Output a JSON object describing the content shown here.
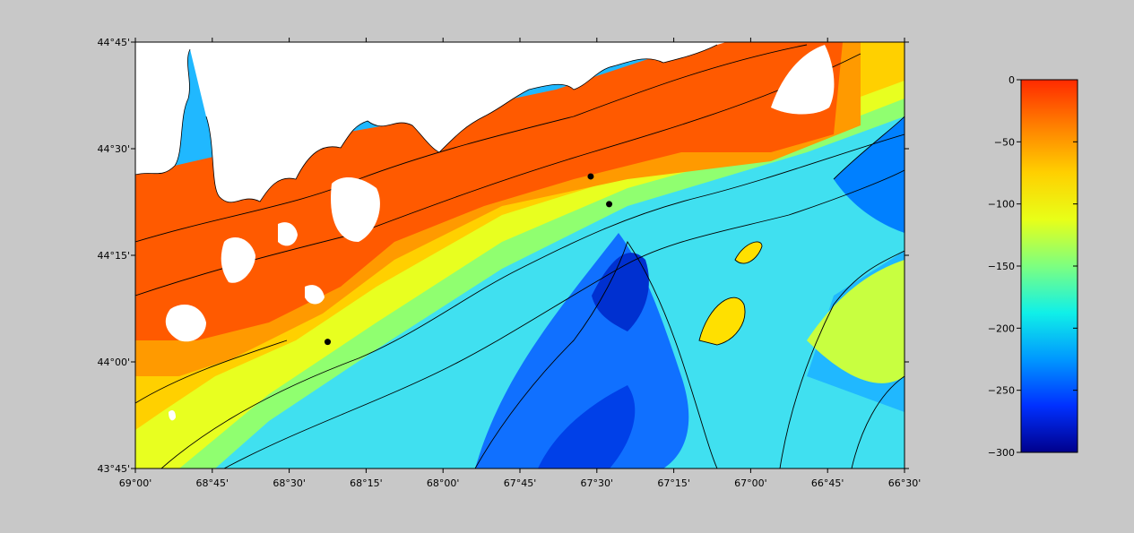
{
  "map": {
    "x_ticks": [
      "69°00'",
      "68°45'",
      "68°30'",
      "68°15'",
      "68°00'",
      "67°45'",
      "67°30'",
      "67°15'",
      "67°00'",
      "66°45'",
      "66°30'"
    ],
    "y_ticks": [
      "44°45'",
      "44°30'",
      "44°15'",
      "44°00'",
      "43°45'"
    ],
    "markers": [
      {
        "lon": -67.52,
        "lat": 44.435
      },
      {
        "lon": -67.46,
        "lat": 44.37
      },
      {
        "lon": -68.375,
        "lat": 44.047
      }
    ],
    "colors": {
      "land": "#ffffff",
      "shallow": "#ff3c00",
      "deep": "#0000a0",
      "contour": "#000000"
    }
  },
  "colorbar": {
    "labels": [
      "0",
      "−50",
      "−100",
      "−150",
      "−200",
      "−250",
      "−300"
    ],
    "values": [
      0,
      -50,
      -100,
      -150,
      -200,
      -250,
      -300
    ],
    "range": [
      -300,
      0
    ],
    "colormap": "jet"
  }
}
